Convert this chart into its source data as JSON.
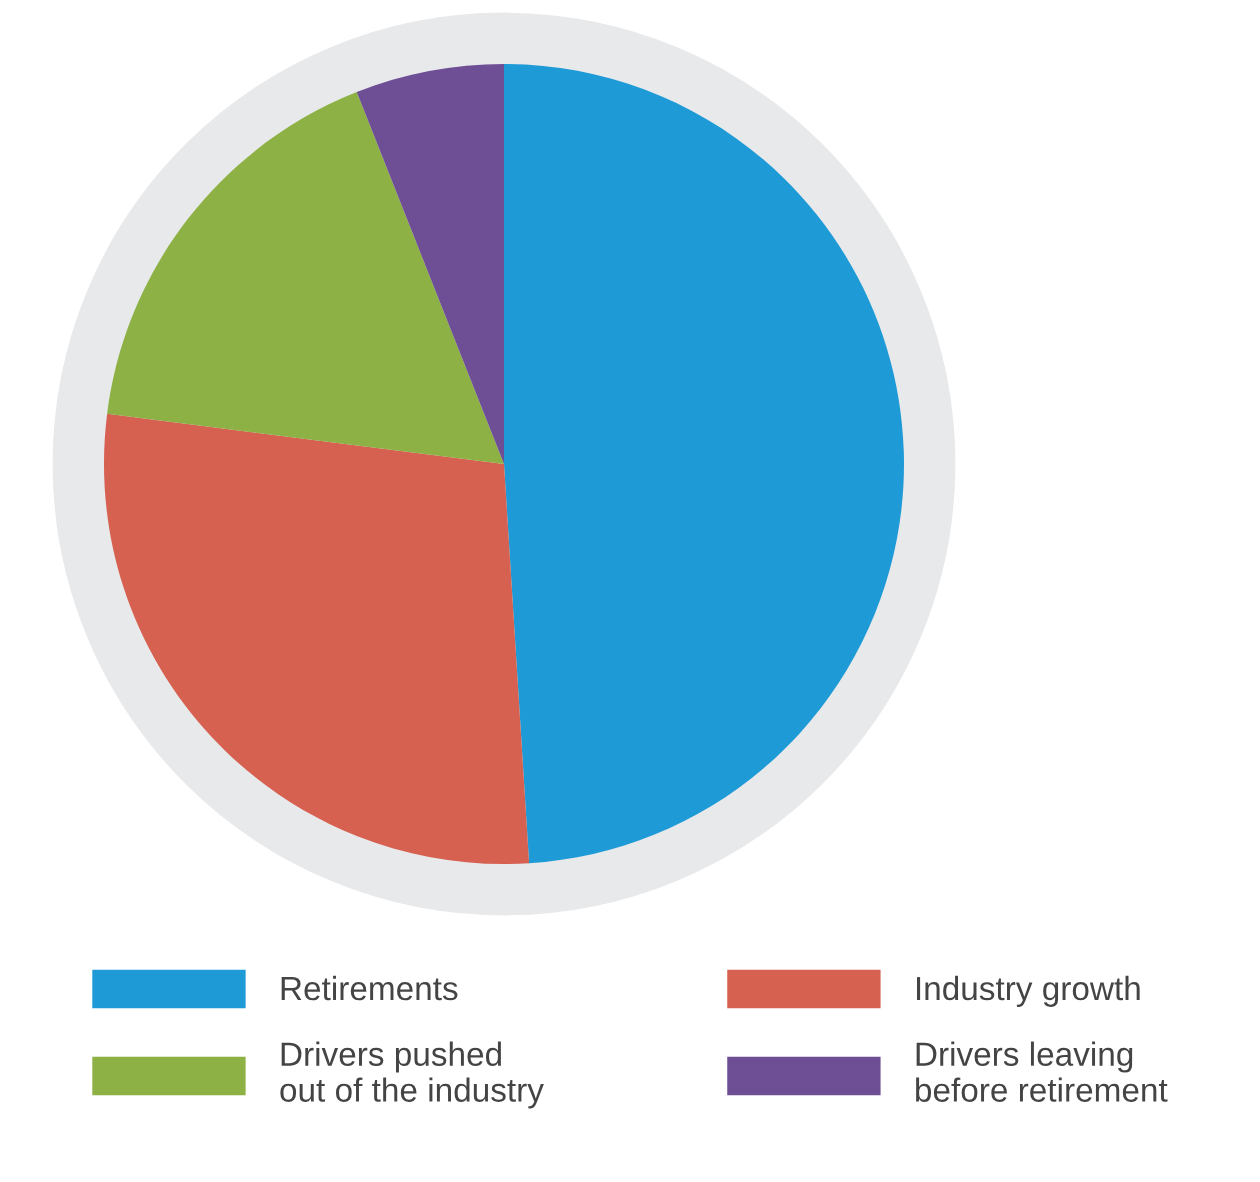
{
  "chart_data": {
    "type": "pie",
    "categories": [
      "Retirements",
      "Industry growth",
      "Drivers pushed\nout of the industry",
      "Drivers leaving\nbefore retirement"
    ],
    "values": [
      49,
      28,
      17,
      6
    ],
    "colors": [
      "#1e9ad6",
      "#d66150",
      "#8db144",
      "#6e4f96"
    ],
    "legend": "bottom"
  }
}
